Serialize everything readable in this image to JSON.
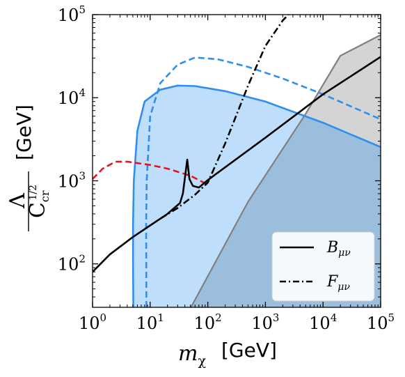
{
  "chart_data": {
    "type": "line",
    "x_scale": "log",
    "y_scale": "log",
    "xlim": [
      1,
      100000
    ],
    "ylim": [
      30,
      100000
    ],
    "x_ticks": [
      1,
      10,
      100,
      1000,
      10000,
      100000
    ],
    "y_ticks": [
      100,
      1000,
      10000,
      100000
    ],
    "x_tick_labels": [
      {
        "base": "10",
        "exp": "0"
      },
      {
        "base": "10",
        "exp": "1"
      },
      {
        "base": "10",
        "exp": "2"
      },
      {
        "base": "10",
        "exp": "3"
      },
      {
        "base": "10",
        "exp": "4"
      },
      {
        "base": "10",
        "exp": "5"
      }
    ],
    "y_tick_labels": [
      {
        "base": "10",
        "exp": "2"
      },
      {
        "base": "10",
        "exp": "3"
      },
      {
        "base": "10",
        "exp": "4"
      },
      {
        "base": "10",
        "exp": "5"
      }
    ],
    "xlabel": "m_χ",
    "xlabel_unit": "[GeV]",
    "ylabel_num": "Λ",
    "ylabel_den": "C_cr^{1/2}",
    "ylabel_den_main": "C",
    "ylabel_den_sub": "cr",
    "ylabel_den_sup": "1/2",
    "ylabel_unit": "[GeV]",
    "grid": false,
    "legend_position": "bottom-right",
    "legend": [
      {
        "label": "B_μν",
        "main": "B",
        "sub": "μν",
        "style": "solid",
        "color": "#000000"
      },
      {
        "label": "F_μν",
        "main": "F",
        "sub": "μν",
        "style": "dashdot",
        "color": "#000000"
      }
    ],
    "series": [
      {
        "name": "B_μν",
        "style": "solid",
        "color": "#000000",
        "points": [
          [
            1,
            80
          ],
          [
            2,
            130
          ],
          [
            5,
            210
          ],
          [
            10,
            290
          ],
          [
            20,
            400
          ],
          [
            33,
            540
          ],
          [
            37,
            700
          ],
          [
            44,
            1800
          ],
          [
            48,
            1050
          ],
          [
            55,
            870
          ],
          [
            70,
            830
          ],
          [
            100,
            1020
          ],
          [
            1000,
            3300
          ],
          [
            10000,
            11000
          ],
          [
            100000,
            31000
          ]
        ]
      },
      {
        "name": "F_μν",
        "style": "dashdot",
        "color": "#000000",
        "points": [
          [
            15,
            350
          ],
          [
            30,
            470
          ],
          [
            60,
            680
          ],
          [
            100,
            950
          ],
          [
            200,
            2800
          ],
          [
            500,
            14000
          ],
          [
            1000,
            42000
          ],
          [
            2000,
            85000
          ],
          [
            2500,
            100000
          ]
        ]
      },
      {
        "style": "solid",
        "color": "#2e8ff0",
        "fill": "#bfdefb",
        "boundary": "filled region, solid blue line",
        "points": [
          [
            5.1,
            30
          ],
          [
            5.05,
            100
          ],
          [
            5.05,
            300
          ],
          [
            5.2,
            1000
          ],
          [
            6,
            4000
          ],
          [
            8,
            9000
          ],
          [
            15,
            12500
          ],
          [
            30,
            14000
          ],
          [
            60,
            13800
          ],
          [
            200,
            12000
          ],
          [
            1000,
            9000
          ],
          [
            10000,
            5000
          ],
          [
            100000,
            2550
          ]
        ]
      },
      {
        "style": "dashed",
        "color": "#2e8ff0",
        "points": [
          [
            8.6,
            30
          ],
          [
            8.5,
            300
          ],
          [
            8.7,
            1000
          ],
          [
            10,
            6000
          ],
          [
            15,
            15000
          ],
          [
            30,
            25000
          ],
          [
            60,
            30500
          ],
          [
            150,
            29000
          ],
          [
            500,
            23500
          ],
          [
            2000,
            17000
          ],
          [
            10000,
            11000
          ],
          [
            100000,
            5500
          ]
        ]
      },
      {
        "style": "dashed",
        "color": "#e8141b",
        "points": [
          [
            1,
            1050
          ],
          [
            1.5,
            1400
          ],
          [
            2.5,
            1700
          ],
          [
            4,
            1700
          ],
          [
            10,
            1550
          ],
          [
            20,
            1400
          ],
          [
            50,
            1150
          ],
          [
            100,
            900
          ]
        ]
      },
      {
        "style": "solid",
        "color": "#808080",
        "fill": "#d4d4d4",
        "points": [
          [
            51,
            30
          ],
          [
            500,
            560
          ],
          [
            5000,
            6400
          ],
          [
            20000,
            32000
          ],
          [
            100000,
            57000
          ]
        ]
      }
    ],
    "dark_overlap_color": "#9bbedd"
  }
}
